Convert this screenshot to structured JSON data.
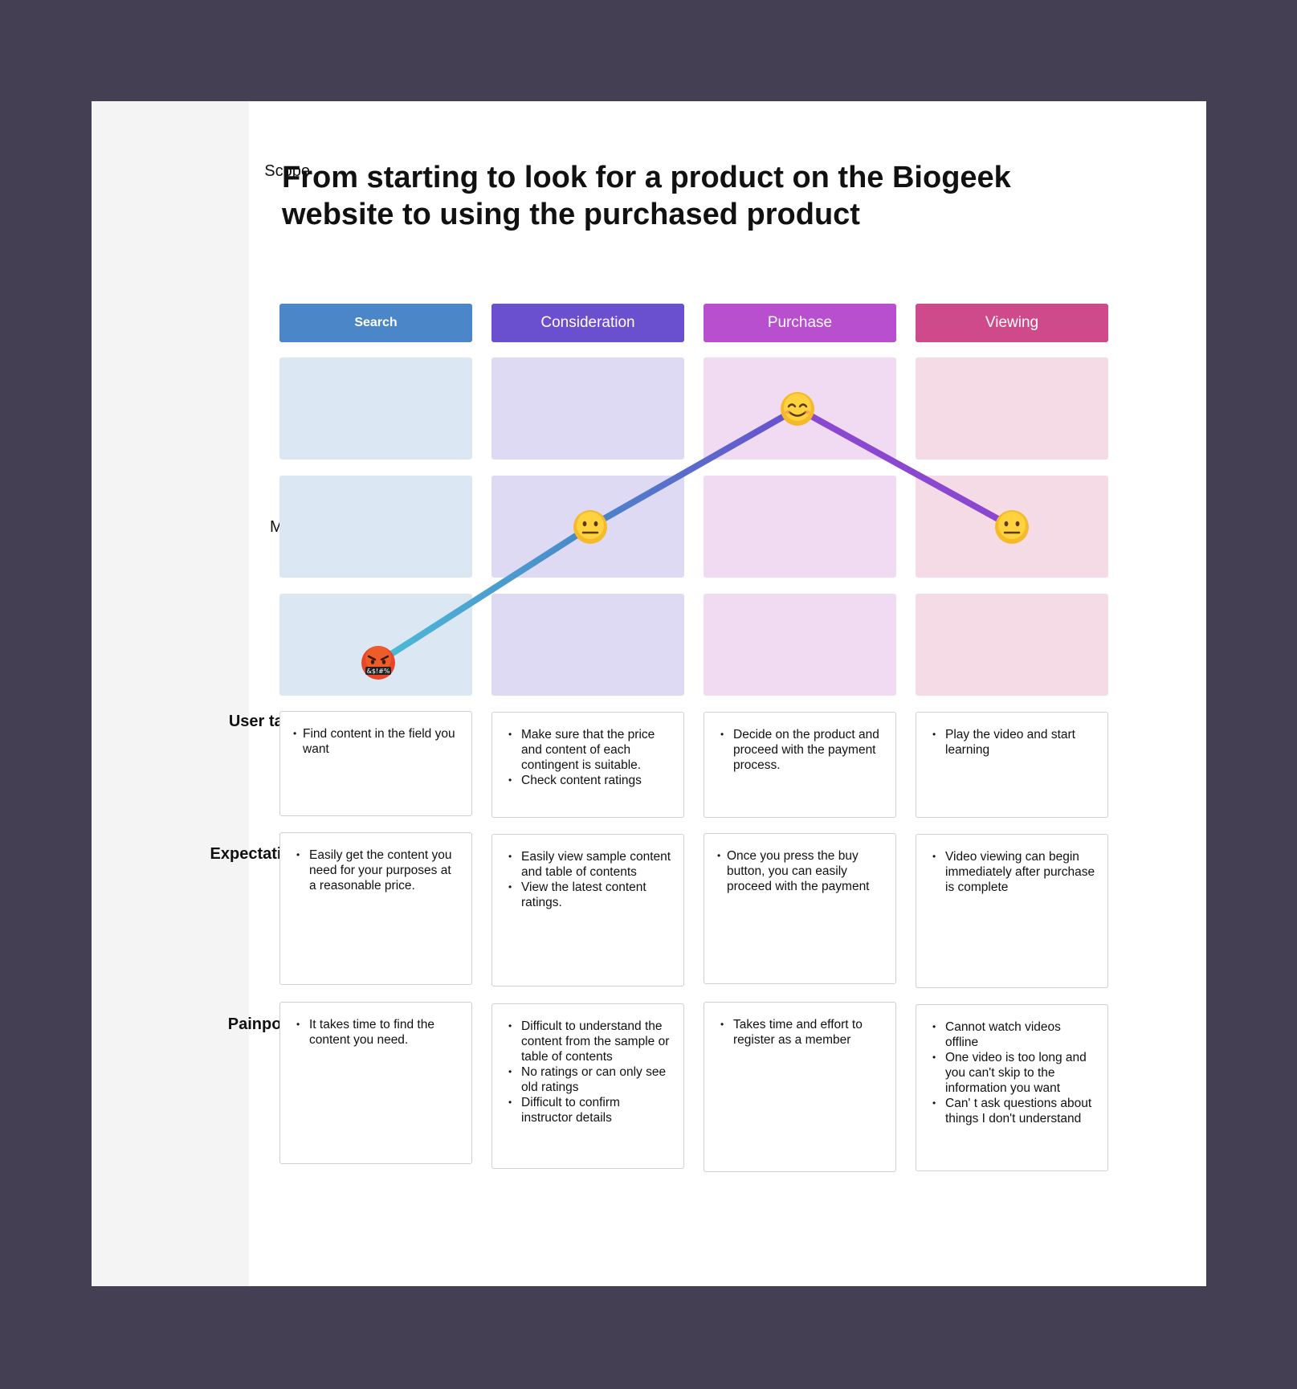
{
  "labels": {
    "scope": "Scope",
    "mood": "Mood",
    "user_tasks": "User tasks",
    "expectations": "Expectations",
    "painpoints": "Painpoints"
  },
  "title": "From starting to look for a product on the Biogeek website to using the purchased product",
  "stages": [
    {
      "name": "Search",
      "color": "#4a86c8",
      "tint": "#dce7f4",
      "mood": "angry",
      "mood_level": 1,
      "user_tasks": [
        "Find content in the field you want"
      ],
      "expectations": [
        "Easily get the content you need for your purposes at a reasonable price."
      ],
      "painpoints": [
        "It takes time to find the content you need."
      ]
    },
    {
      "name": "Consideration",
      "color": "#6a4fcf",
      "tint": "#dfdaf3",
      "mood": "neutral",
      "mood_level": 2,
      "user_tasks": [
        "Make sure that the price and content of each contingent is suitable.",
        "Check content ratings"
      ],
      "expectations": [
        "Easily view sample content and table of contents",
        "View the latest content ratings."
      ],
      "painpoints": [
        "Difficult to understand the content from the sample or table of contents",
        "No ratings or can only see old ratings",
        "Difficult to confirm instructor details"
      ]
    },
    {
      "name": "Purchase",
      "color": "#b84fcf",
      "tint": "#f0dbf3",
      "mood": "happy",
      "mood_level": 3,
      "user_tasks": [
        "Decide on the product and proceed with the payment process."
      ],
      "expectations": [
        "Once you press the buy button, you can easily proceed with the payment"
      ],
      "painpoints": [
        "Takes time and effort to register as a member"
      ]
    },
    {
      "name": "Viewing",
      "color": "#cf4a8a",
      "tint": "#f4dbe6",
      "mood": "neutral",
      "mood_level": 2,
      "user_tasks": [
        "Play the video and start learning"
      ],
      "expectations": [
        "Video viewing can begin immediately after purchase is complete"
      ],
      "painpoints": [
        "Cannot watch videos offline",
        "One video is too long and you can't skip to the information you want",
        "Can' t ask questions about things I don't understand"
      ]
    }
  ],
  "mood_emoji_text": "&$!#%",
  "line_colors": [
    "#4cbcd8",
    "#4a86c8",
    "#6a4fcf",
    "#8a48d0"
  ]
}
